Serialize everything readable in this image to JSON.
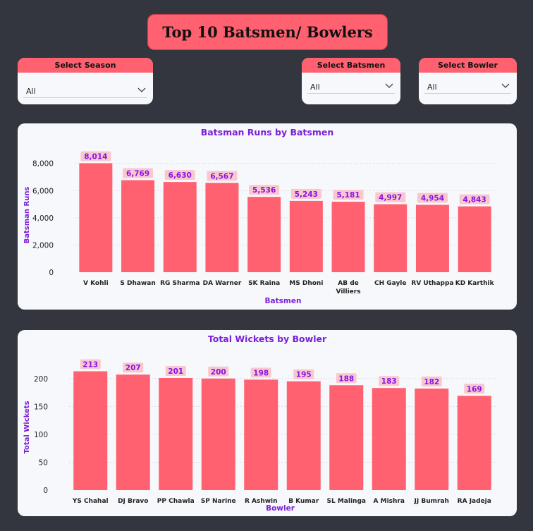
{
  "header": {
    "title": "Top 10 Batsmen/ Bowlers"
  },
  "slicers": {
    "season": {
      "label": "Select Season",
      "value": "All"
    },
    "batsmen": {
      "label": "Select Batsmen",
      "value": "All"
    },
    "bowler": {
      "label": "Select Bowler",
      "value": "All"
    }
  },
  "colors": {
    "bar": "#ff6170",
    "label_bg": "#f8c8cf",
    "label_text": "#8b12e6",
    "title_text": "#7a1fd8",
    "background": "#33363e",
    "card": "#f7f8fb"
  },
  "chart_data": [
    {
      "type": "bar",
      "title": "Batsman Runs by Batsmen",
      "xlabel": "Batsmen",
      "ylabel": "Batsman Runs",
      "categories": [
        "V Kohli",
        "S Dhawan",
        "RG Sharma",
        "DA Warner",
        "SK Raina",
        "MS Dhoni",
        "AB de Villiers",
        "CH Gayle",
        "RV Uthappa",
        "KD Karthik"
      ],
      "values": [
        8014,
        6769,
        6630,
        6567,
        5536,
        5243,
        5181,
        4997,
        4954,
        4843
      ],
      "data_labels": [
        "8,014",
        "6,769",
        "6,630",
        "6,567",
        "5,536",
        "5,243",
        "5,181",
        "4,997",
        "4,954",
        "4,843"
      ],
      "yticks": [
        0,
        2000,
        4000,
        6000,
        8000
      ],
      "ytick_labels": [
        "0",
        "2,000",
        "4,000",
        "6,000",
        "8,000"
      ],
      "ylim": [
        0,
        8400
      ],
      "grid": true
    },
    {
      "type": "bar",
      "title": "Total Wickets by Bowler",
      "xlabel": "Bowler",
      "ylabel": "Total Wickets",
      "categories": [
        "YS Chahal",
        "DJ Bravo",
        "PP Chawla",
        "SP Narine",
        "R Ashwin",
        "B Kumar",
        "SL Malinga",
        "A Mishra",
        "JJ Bumrah",
        "RA Jadeja"
      ],
      "values": [
        213,
        207,
        201,
        200,
        198,
        195,
        188,
        183,
        182,
        169
      ],
      "data_labels": [
        "213",
        "207",
        "201",
        "200",
        "198",
        "195",
        "188",
        "183",
        "182",
        "169"
      ],
      "yticks": [
        0,
        50,
        100,
        150,
        200
      ],
      "ytick_labels": [
        "0",
        "50",
        "100",
        "150",
        "200"
      ],
      "ylim": [
        0,
        225
      ],
      "grid": true
    }
  ]
}
